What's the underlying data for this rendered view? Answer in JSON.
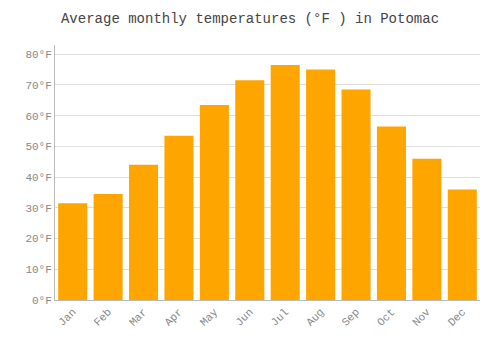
{
  "chart_data": {
    "type": "bar",
    "title": "Average monthly temperatures (°F ) in Potomac",
    "categories": [
      "Jan",
      "Feb",
      "Mar",
      "Apr",
      "May",
      "Jun",
      "Jul",
      "Aug",
      "Sep",
      "Oct",
      "Nov",
      "Dec"
    ],
    "values": [
      31.5,
      34.5,
      44.0,
      53.5,
      63.5,
      71.5,
      76.5,
      75.0,
      68.5,
      56.5,
      46.0,
      36.0
    ],
    "color": "#FFA500",
    "ylim": [
      0,
      83
    ],
    "yticks": [
      {
        "value": 0,
        "label": "0°F"
      },
      {
        "value": 10,
        "label": "10°F"
      },
      {
        "value": 20,
        "label": "20°F"
      },
      {
        "value": 30,
        "label": "30°F"
      },
      {
        "value": 40,
        "label": "40°F"
      },
      {
        "value": 50,
        "label": "50°F"
      },
      {
        "value": 60,
        "label": "60°F"
      },
      {
        "value": 70,
        "label": "70°F"
      },
      {
        "value": 80,
        "label": "80°F"
      }
    ],
    "grid": true
  }
}
